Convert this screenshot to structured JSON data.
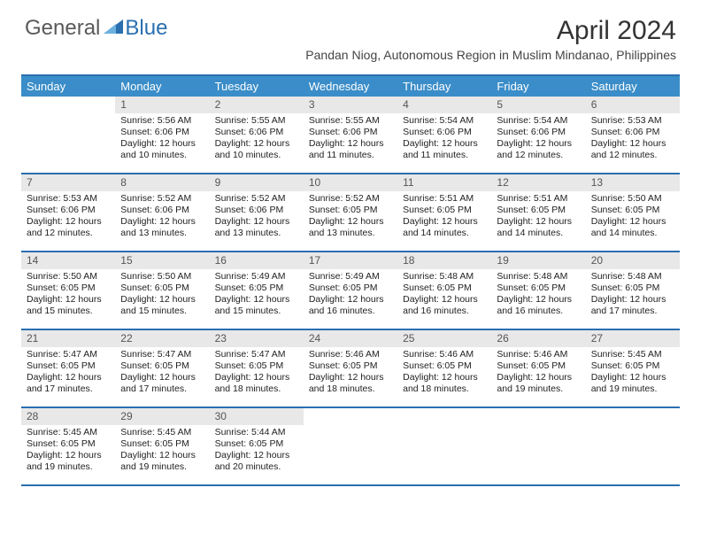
{
  "logo": {
    "general": "General",
    "blue": "Blue"
  },
  "title": "April 2024",
  "location": "Pandan Niog, Autonomous Region in Muslim Mindanao, Philippines",
  "day_headers": [
    "Sunday",
    "Monday",
    "Tuesday",
    "Wednesday",
    "Thursday",
    "Friday",
    "Saturday"
  ],
  "colors": {
    "header_bg": "#3a8dc8",
    "rule": "#2a6fb0",
    "daynum_bg": "#e8e8e8"
  },
  "weeks": [
    [
      null,
      {
        "n": "1",
        "sr": "5:56 AM",
        "ss": "6:06 PM",
        "dl": "12 hours and 10 minutes."
      },
      {
        "n": "2",
        "sr": "5:55 AM",
        "ss": "6:06 PM",
        "dl": "12 hours and 10 minutes."
      },
      {
        "n": "3",
        "sr": "5:55 AM",
        "ss": "6:06 PM",
        "dl": "12 hours and 11 minutes."
      },
      {
        "n": "4",
        "sr": "5:54 AM",
        "ss": "6:06 PM",
        "dl": "12 hours and 11 minutes."
      },
      {
        "n": "5",
        "sr": "5:54 AM",
        "ss": "6:06 PM",
        "dl": "12 hours and 12 minutes."
      },
      {
        "n": "6",
        "sr": "5:53 AM",
        "ss": "6:06 PM",
        "dl": "12 hours and 12 minutes."
      }
    ],
    [
      {
        "n": "7",
        "sr": "5:53 AM",
        "ss": "6:06 PM",
        "dl": "12 hours and 12 minutes."
      },
      {
        "n": "8",
        "sr": "5:52 AM",
        "ss": "6:06 PM",
        "dl": "12 hours and 13 minutes."
      },
      {
        "n": "9",
        "sr": "5:52 AM",
        "ss": "6:06 PM",
        "dl": "12 hours and 13 minutes."
      },
      {
        "n": "10",
        "sr": "5:52 AM",
        "ss": "6:05 PM",
        "dl": "12 hours and 13 minutes."
      },
      {
        "n": "11",
        "sr": "5:51 AM",
        "ss": "6:05 PM",
        "dl": "12 hours and 14 minutes."
      },
      {
        "n": "12",
        "sr": "5:51 AM",
        "ss": "6:05 PM",
        "dl": "12 hours and 14 minutes."
      },
      {
        "n": "13",
        "sr": "5:50 AM",
        "ss": "6:05 PM",
        "dl": "12 hours and 14 minutes."
      }
    ],
    [
      {
        "n": "14",
        "sr": "5:50 AM",
        "ss": "6:05 PM",
        "dl": "12 hours and 15 minutes."
      },
      {
        "n": "15",
        "sr": "5:50 AM",
        "ss": "6:05 PM",
        "dl": "12 hours and 15 minutes."
      },
      {
        "n": "16",
        "sr": "5:49 AM",
        "ss": "6:05 PM",
        "dl": "12 hours and 15 minutes."
      },
      {
        "n": "17",
        "sr": "5:49 AM",
        "ss": "6:05 PM",
        "dl": "12 hours and 16 minutes."
      },
      {
        "n": "18",
        "sr": "5:48 AM",
        "ss": "6:05 PM",
        "dl": "12 hours and 16 minutes."
      },
      {
        "n": "19",
        "sr": "5:48 AM",
        "ss": "6:05 PM",
        "dl": "12 hours and 16 minutes."
      },
      {
        "n": "20",
        "sr": "5:48 AM",
        "ss": "6:05 PM",
        "dl": "12 hours and 17 minutes."
      }
    ],
    [
      {
        "n": "21",
        "sr": "5:47 AM",
        "ss": "6:05 PM",
        "dl": "12 hours and 17 minutes."
      },
      {
        "n": "22",
        "sr": "5:47 AM",
        "ss": "6:05 PM",
        "dl": "12 hours and 17 minutes."
      },
      {
        "n": "23",
        "sr": "5:47 AM",
        "ss": "6:05 PM",
        "dl": "12 hours and 18 minutes."
      },
      {
        "n": "24",
        "sr": "5:46 AM",
        "ss": "6:05 PM",
        "dl": "12 hours and 18 minutes."
      },
      {
        "n": "25",
        "sr": "5:46 AM",
        "ss": "6:05 PM",
        "dl": "12 hours and 18 minutes."
      },
      {
        "n": "26",
        "sr": "5:46 AM",
        "ss": "6:05 PM",
        "dl": "12 hours and 19 minutes."
      },
      {
        "n": "27",
        "sr": "5:45 AM",
        "ss": "6:05 PM",
        "dl": "12 hours and 19 minutes."
      }
    ],
    [
      {
        "n": "28",
        "sr": "5:45 AM",
        "ss": "6:05 PM",
        "dl": "12 hours and 19 minutes."
      },
      {
        "n": "29",
        "sr": "5:45 AM",
        "ss": "6:05 PM",
        "dl": "12 hours and 19 minutes."
      },
      {
        "n": "30",
        "sr": "5:44 AM",
        "ss": "6:05 PM",
        "dl": "12 hours and 20 minutes."
      },
      null,
      null,
      null,
      null
    ]
  ],
  "labels": {
    "sunrise": "Sunrise:",
    "sunset": "Sunset:",
    "daylight": "Daylight:"
  }
}
